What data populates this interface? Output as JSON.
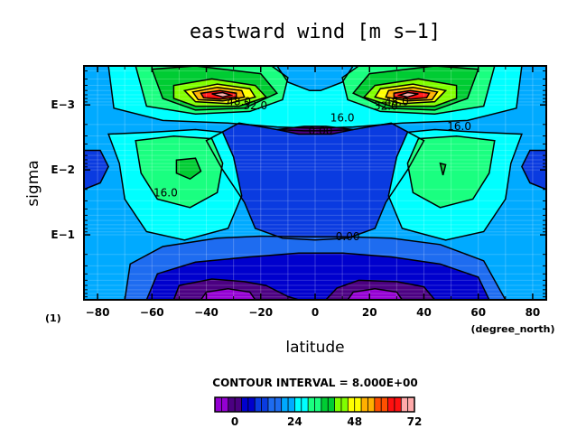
{
  "chart_data": {
    "type": "heatmap",
    "title": "eastward wind [m s−1]",
    "xlabel": "latitude",
    "x_unit_label": "(degree_north)",
    "ylabel": "sigma",
    "figure_label": "(1)",
    "xlim": [
      -85,
      85
    ],
    "ylim_log10_sigma": [
      -3.6,
      0
    ],
    "y_log_scale": true,
    "grid": true,
    "x_ticks": [
      {
        "v": -80,
        "label": "−80"
      },
      {
        "v": -60,
        "label": "−60"
      },
      {
        "v": -40,
        "label": "−40"
      },
      {
        "v": -20,
        "label": "−20"
      },
      {
        "v": 0,
        "label": "0"
      },
      {
        "v": 20,
        "label": "20"
      },
      {
        "v": 40,
        "label": "40"
      },
      {
        "v": 60,
        "label": "60"
      },
      {
        "v": 80,
        "label": "80"
      }
    ],
    "y_ticks": [
      {
        "v": -3,
        "label": "E−3"
      },
      {
        "v": -2,
        "label": "E−2"
      },
      {
        "v": -1,
        "label": "E−1"
      }
    ],
    "contour_interval_text": "CONTOUR INTERVAL = 8.000E+00",
    "levels": [
      -8,
      0,
      8,
      16,
      24,
      32,
      40,
      48,
      56,
      64,
      72
    ],
    "colorbar_labels": [
      {
        "v": 0,
        "label": "0"
      },
      {
        "v": 24,
        "label": "24"
      },
      {
        "v": 48,
        "label": "48"
      },
      {
        "v": 72,
        "label": "72"
      }
    ],
    "colorbar_colors": [
      "#9400d3",
      "#4b0082",
      "#0000cd",
      "#0a3be0",
      "#1e6cf0",
      "#00aaff",
      "#00ffff",
      "#1aff80",
      "#00cc33",
      "#80ff00",
      "#ffff00",
      "#ffb000",
      "#ff5000",
      "#ff1010",
      "#ffaaaa"
    ],
    "contour_labels": [
      {
        "lat": -28,
        "s": -3.05,
        "label": "48.0"
      },
      {
        "lat": -22,
        "s": -2.99,
        "label": "32.0"
      },
      {
        "lat": 10,
        "s": -2.8,
        "label": "16.0"
      },
      {
        "lat": 2,
        "s": -2.6,
        "label": "0.00"
      },
      {
        "lat": 30,
        "s": -3.05,
        "label": "48.0"
      },
      {
        "lat": 26,
        "s": -2.98,
        "label": "32.0"
      },
      {
        "lat": 53,
        "s": -2.67,
        "label": "16.0"
      },
      {
        "lat": -55,
        "s": -1.65,
        "label": "16.0"
      },
      {
        "lat": 12,
        "s": -0.97,
        "label": "0.00"
      }
    ]
  }
}
